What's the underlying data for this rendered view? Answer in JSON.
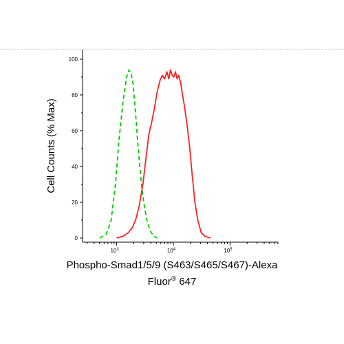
{
  "chart_data": {
    "type": "line",
    "xlabel_line1": "Phospho-Smad1/5/9  (S463/S465/S467)-Alexa",
    "xlabel_line2_prefix": "Fluor",
    "xlabel_line2_sup": "®",
    "xlabel_line2_suffix": " 647",
    "ylabel": "Cell Counts (% Max)",
    "x_scale": "log",
    "xlim": [
      250,
      700000
    ],
    "ylim": [
      0,
      100
    ],
    "y_ticks": [
      0,
      20,
      40,
      60,
      80,
      100
    ],
    "x_ticks": [
      {
        "value": 1000,
        "base": "10",
        "exp": "3"
      },
      {
        "value": 10000,
        "base": "10",
        "exp": "4"
      },
      {
        "value": 100000,
        "base": "10",
        "exp": "5"
      }
    ],
    "series": [
      {
        "color": "#00cc00",
        "style": "dashed",
        "points": [
          [
            500,
            0
          ],
          [
            650,
            2
          ],
          [
            800,
            10
          ],
          [
            950,
            30
          ],
          [
            1100,
            55
          ],
          [
            1300,
            77
          ],
          [
            1500,
            90
          ],
          [
            1650,
            94
          ],
          [
            1800,
            92
          ],
          [
            1950,
            86
          ],
          [
            2150,
            70
          ],
          [
            2400,
            50
          ],
          [
            2700,
            32
          ],
          [
            3000,
            20
          ],
          [
            3400,
            10
          ],
          [
            3900,
            4
          ],
          [
            4500,
            1
          ],
          [
            5200,
            0
          ]
        ]
      },
      {
        "color": "#ff2020",
        "style": "solid",
        "points": [
          [
            1000,
            0
          ],
          [
            1300,
            1
          ],
          [
            1600,
            3
          ],
          [
            1900,
            6
          ],
          [
            2200,
            11
          ],
          [
            2500,
            18
          ],
          [
            2900,
            30
          ],
          [
            3300,
            45
          ],
          [
            3700,
            58
          ],
          [
            4100,
            64
          ],
          [
            4600,
            72
          ],
          [
            5200,
            82
          ],
          [
            5800,
            88
          ],
          [
            6400,
            91
          ],
          [
            7000,
            89
          ],
          [
            7700,
            93
          ],
          [
            8300,
            89
          ],
          [
            8900,
            94
          ],
          [
            9500,
            91
          ],
          [
            10200,
            90
          ],
          [
            10900,
            93
          ],
          [
            11600,
            89
          ],
          [
            12400,
            91
          ],
          [
            13400,
            87
          ],
          [
            14500,
            80
          ],
          [
            15800,
            73
          ],
          [
            17500,
            63
          ],
          [
            19500,
            50
          ],
          [
            21500,
            35
          ],
          [
            24000,
            20
          ],
          [
            27000,
            10
          ],
          [
            31000,
            3
          ],
          [
            36000,
            1
          ],
          [
            45000,
            0
          ]
        ]
      }
    ]
  }
}
